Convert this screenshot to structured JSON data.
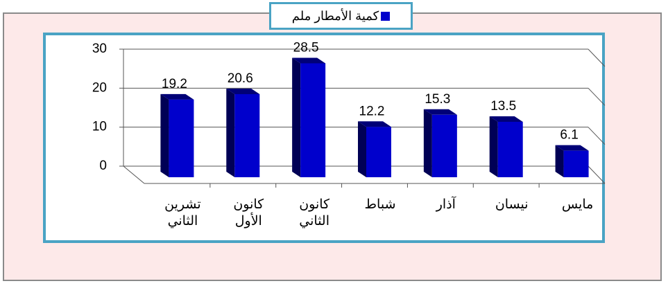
{
  "chart_data": {
    "type": "bar3d",
    "categories": [
      "تشرين الثاني",
      "كانون الأول",
      "كانون الثاني",
      "شباط",
      "آذار",
      "نيسان",
      "مايس"
    ],
    "series": [
      {
        "name": "كمية الأمطار ملم",
        "color": "#0000cc",
        "values": [
          19.2,
          20.6,
          28.5,
          12.2,
          15.3,
          13.5,
          6.1
        ]
      }
    ],
    "ylim": [
      0,
      30
    ],
    "yticks": [
      0,
      10,
      20,
      30
    ],
    "grid": true
  }
}
